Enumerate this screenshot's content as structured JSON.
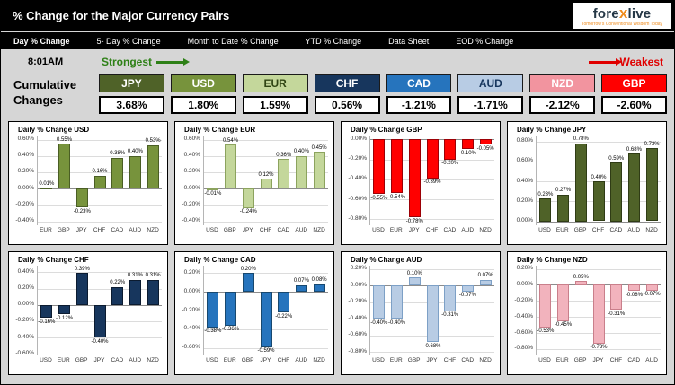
{
  "header": {
    "title": "% Change for the Major Currency Pairs",
    "logo": {
      "text_pre": "fore",
      "text_x": "x",
      "text_post": "live",
      "tagline": "Tomorrow's Conventional Wisdom Today"
    }
  },
  "tabs": [
    {
      "label": "Day % Change",
      "active": true
    },
    {
      "label": "5- Day % Change",
      "active": false
    },
    {
      "label": "Month to Date % Change",
      "active": false
    },
    {
      "label": "YTD % Change",
      "active": false
    },
    {
      "label": "Data Sheet",
      "active": false
    },
    {
      "label": "EOD % Change",
      "active": false
    }
  ],
  "rank_row": {
    "time": "8:01AM",
    "strongest_label": "Strongest",
    "weakest_label": "Weakest",
    "strongest_color": "#2e8017",
    "weakest_color": "#e00000"
  },
  "summary": {
    "label_line1": "Cumulative",
    "label_line2": "Changes",
    "currencies": [
      {
        "code": "JPY",
        "value": "3.68%",
        "bg": "#4f6228",
        "fg": "#ffffff"
      },
      {
        "code": "USD",
        "value": "1.80%",
        "bg": "#77933c",
        "fg": "#ffffff"
      },
      {
        "code": "EUR",
        "value": "1.59%",
        "bg": "#c4d79b",
        "fg": "#2f4413"
      },
      {
        "code": "CHF",
        "value": "0.56%",
        "bg": "#17365d",
        "fg": "#ffffff"
      },
      {
        "code": "CAD",
        "value": "-1.21%",
        "bg": "#2674bd",
        "fg": "#ffffff"
      },
      {
        "code": "AUD",
        "value": "-1.71%",
        "bg": "#b8cce4",
        "fg": "#17365d"
      },
      {
        "code": "NZD",
        "value": "-2.12%",
        "bg": "#f2949f",
        "fg": "#ffffff"
      },
      {
        "code": "GBP",
        "value": "-2.60%",
        "bg": "#ff0000",
        "fg": "#ffffff"
      }
    ]
  },
  "chart_data": [
    {
      "type": "bar",
      "title": "Daily % Change USD",
      "categories": [
        "EUR",
        "GBP",
        "JPY",
        "CHF",
        "CAD",
        "AUD",
        "NZD"
      ],
      "values": [
        0.01,
        0.55,
        -0.23,
        0.16,
        0.38,
        0.4,
        0.53
      ],
      "bar_color": "#77933c",
      "bar_border": "#4a5e24",
      "ymin": -0.45,
      "ymax": 0.65,
      "ticks": [
        0.6,
        0.4,
        0.2,
        0,
        -0.2,
        -0.4
      ]
    },
    {
      "type": "bar",
      "title": "Daily % Change EUR",
      "categories": [
        "USD",
        "GBP",
        "JPY",
        "CHF",
        "CAD",
        "AUD",
        "NZD"
      ],
      "values": [
        -0.01,
        0.54,
        -0.24,
        0.12,
        0.36,
        0.4,
        0.45
      ],
      "bar_color": "#c4d79b",
      "bar_border": "#8ca35e",
      "ymin": -0.45,
      "ymax": 0.65,
      "ticks": [
        0.6,
        0.4,
        0.2,
        0,
        -0.2,
        -0.4
      ]
    },
    {
      "type": "bar",
      "title": "Daily % Change GBP",
      "categories": [
        "USD",
        "EUR",
        "JPY",
        "CHF",
        "CAD",
        "AUD",
        "NZD"
      ],
      "values": [
        -0.55,
        -0.54,
        -0.78,
        -0.39,
        -0.2,
        -0.1,
        -0.05
      ],
      "bar_color": "#ff0000",
      "bar_border": "#9c0006",
      "ymin": -0.86,
      "ymax": 0.04,
      "ticks": [
        0,
        -0.2,
        -0.4,
        -0.6,
        -0.8
      ]
    },
    {
      "type": "bar",
      "title": "Daily % Change JPY",
      "categories": [
        "USD",
        "EUR",
        "GBP",
        "CHF",
        "CAD",
        "AUD",
        "NZD"
      ],
      "values": [
        0.23,
        0.27,
        0.78,
        0.4,
        0.59,
        0.68,
        0.73
      ],
      "bar_color": "#4f6228",
      "bar_border": "#2f3c15",
      "ymin": -0.04,
      "ymax": 0.86,
      "ticks": [
        0.8,
        0.6,
        0.4,
        0.2,
        0
      ]
    },
    {
      "type": "bar",
      "title": "Daily % Change CHF",
      "categories": [
        "USD",
        "EUR",
        "GBP",
        "JPY",
        "CAD",
        "AUD",
        "NZD"
      ],
      "values": [
        -0.16,
        -0.12,
        0.39,
        -0.4,
        0.22,
        0.31,
        0.31
      ],
      "bar_color": "#17365d",
      "bar_border": "#0b1b30",
      "ymin": -0.62,
      "ymax": 0.48,
      "ticks": [
        0.4,
        0.2,
        0,
        -0.2,
        -0.4,
        -0.6
      ]
    },
    {
      "type": "bar",
      "title": "Daily % Change CAD",
      "categories": [
        "USD",
        "EUR",
        "GBP",
        "JPY",
        "CHF",
        "AUD",
        "NZD"
      ],
      "values": [
        -0.38,
        -0.36,
        0.2,
        -0.59,
        -0.22,
        0.07,
        0.08
      ],
      "bar_color": "#2674bd",
      "bar_border": "#17486f",
      "ymin": -0.68,
      "ymax": 0.28,
      "ticks": [
        0.2,
        0,
        -0.2,
        -0.4,
        -0.6
      ]
    },
    {
      "type": "bar",
      "title": "Daily % Change AUD",
      "categories": [
        "USD",
        "EUR",
        "GBP",
        "JPY",
        "CHF",
        "CAD",
        "NZD"
      ],
      "values": [
        -0.4,
        -0.4,
        0.1,
        -0.68,
        -0.31,
        -0.07,
        0.07
      ],
      "bar_color": "#b8cce4",
      "bar_border": "#7da0c6",
      "ymin": -0.84,
      "ymax": 0.24,
      "ticks": [
        0.2,
        0,
        -0.2,
        -0.4,
        -0.6,
        -0.8
      ]
    },
    {
      "type": "bar",
      "title": "Daily % Change NZD",
      "categories": [
        "USD",
        "EUR",
        "GBP",
        "JPY",
        "CHF",
        "CAD",
        "AUD"
      ],
      "values": [
        -0.53,
        -0.45,
        0.05,
        -0.73,
        -0.31,
        -0.08,
        -0.07
      ],
      "bar_color": "#f2b3bd",
      "bar_border": "#c97f8b",
      "ymin": -0.88,
      "ymax": 0.24,
      "ticks": [
        0.2,
        0,
        -0.2,
        -0.4,
        -0.6,
        -0.8
      ]
    }
  ]
}
